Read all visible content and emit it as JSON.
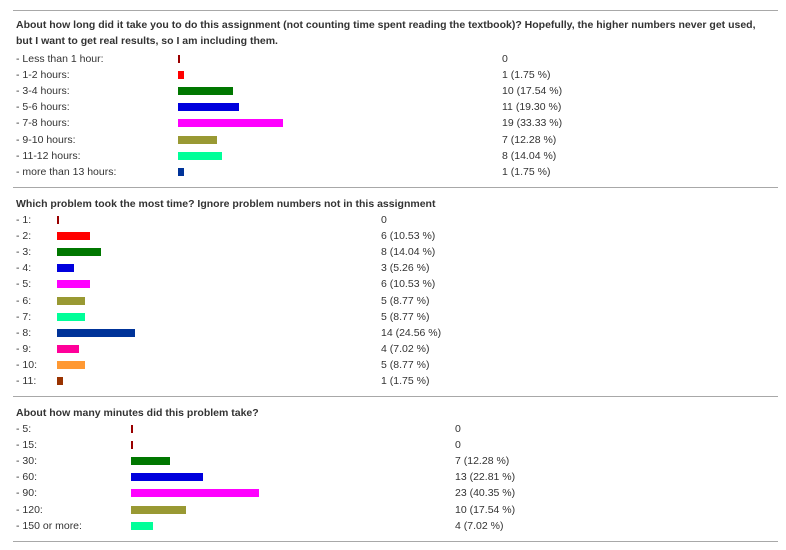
{
  "chart_data": [
    {
      "type": "bar",
      "title": "About how long did it take you to do this assignment (not counting time spent reading the textbook)? Hopefully, the higher numbers never get used, but I want to get real results, so I am including them.",
      "categories": [
        "- Less than 1 hour:",
        "- 1-2 hours:",
        "- 3-4 hours:",
        "- 5-6 hours:",
        "- 7-8 hours:",
        "- 9-10 hours:",
        "- 11-12 hours:",
        "- more than 13 hours:"
      ],
      "values": [
        0,
        1,
        10,
        11,
        19,
        7,
        8,
        1
      ],
      "value_labels": [
        "0",
        "1 (1.75 %)",
        "10 (17.54 %)",
        "11 (19.30 %)",
        "19 (33.33 %)",
        "7 (12.28 %)",
        "8 (14.04 %)",
        "1 (1.75 %)"
      ],
      "colors": [
        "#990000",
        "#ff0000",
        "#007700",
        "#0000dd",
        "#ff00ff",
        "#999933",
        "#00ff99",
        "#003399"
      ]
    },
    {
      "type": "bar",
      "title": "Which problem took the most time? Ignore problem numbers not in this assignment",
      "categories": [
        "- 1:",
        "- 2:",
        "- 3:",
        "- 4:",
        "- 5:",
        "- 6:",
        "- 7:",
        "- 8:",
        "- 9:",
        "- 10:",
        "- 11:"
      ],
      "values": [
        0,
        6,
        8,
        3,
        6,
        5,
        5,
        14,
        4,
        5,
        1
      ],
      "value_labels": [
        "0",
        "6 (10.53 %)",
        "8 (14.04 %)",
        "3 (5.26 %)",
        "6 (10.53 %)",
        "5 (8.77 %)",
        "5 (8.77 %)",
        "14 (24.56 %)",
        "4 (7.02 %)",
        "5 (8.77 %)",
        "1 (1.75 %)"
      ],
      "colors": [
        "#990000",
        "#ff0000",
        "#007700",
        "#0000dd",
        "#ff00ff",
        "#999933",
        "#00ff99",
        "#003399",
        "#ff0099",
        "#ff9933",
        "#993300"
      ]
    },
    {
      "type": "bar",
      "title": "About how many minutes did this problem take?",
      "categories": [
        "- 5:",
        "- 15:",
        "- 30:",
        "- 60:",
        "- 90:",
        "- 120:",
        "- 150 or more:"
      ],
      "values": [
        0,
        0,
        7,
        13,
        23,
        10,
        4
      ],
      "value_labels": [
        "0",
        "0",
        "7 (12.28 %)",
        "13 (22.81 %)",
        "23 (40.35 %)",
        "10 (17.54 %)",
        "4 (7.02 %)"
      ],
      "colors": [
        "#990000",
        "#990000",
        "#007700",
        "#0000dd",
        "#ff00ff",
        "#999933",
        "#00ff99"
      ]
    }
  ]
}
